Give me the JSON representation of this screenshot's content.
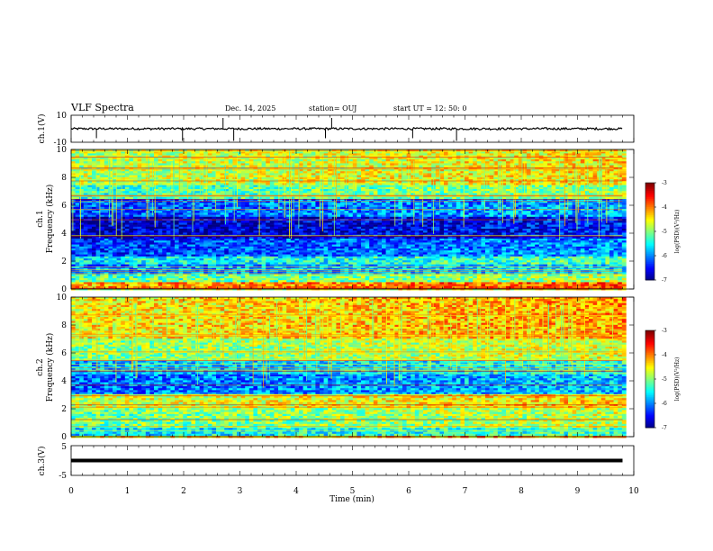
{
  "header": {
    "title": "VLF Spectra",
    "date": "Dec. 14, 2025",
    "station": "station= OUJ",
    "start": "start  UT =   12: 50: 0"
  },
  "chart_data": [
    {
      "id": "ch1-voltage",
      "type": "line",
      "ylabel": "ch.1(V)",
      "ylim": [
        -10,
        10
      ],
      "y_ticks": [
        "10",
        "-10"
      ],
      "baseline": 0,
      "spikes_x": [
        0.45,
        1.98,
        2.7,
        2.89,
        4.52,
        4.63,
        6.07,
        6.85
      ]
    },
    {
      "id": "ch1-spectrogram",
      "type": "heatmap",
      "ylabel": "ch.1\nFrequency (kHz)",
      "ylim": [
        0,
        10
      ],
      "y_ticks": [
        "0",
        "2",
        "4",
        "6",
        "8",
        "10"
      ],
      "xlim": [
        0,
        10
      ],
      "data_end_min": 9.8,
      "colorbar": {
        "label": "log(PSD)(V²/Hz)",
        "ticks": [
          "-3",
          "-4",
          "-5",
          "-6",
          "-7"
        ],
        "range": [
          -7,
          -3
        ]
      },
      "bands": [
        {
          "from": 0.0,
          "to": 0.5,
          "level": -4.2
        },
        {
          "from": 0.5,
          "to": 1.0,
          "level": -5.2
        },
        {
          "from": 1.0,
          "to": 1.7,
          "level": -6.0
        },
        {
          "from": 1.7,
          "to": 2.3,
          "level": -5.6
        },
        {
          "from": 2.3,
          "to": 3.6,
          "level": -6.3
        },
        {
          "from": 3.6,
          "to": 5.2,
          "level": -6.8
        },
        {
          "from": 5.2,
          "to": 6.5,
          "level": -6.2
        },
        {
          "from": 6.5,
          "to": 7.5,
          "level": -5.3
        },
        {
          "from": 7.5,
          "to": 10.0,
          "level": -4.8
        }
      ]
    },
    {
      "id": "ch2-spectrogram",
      "type": "heatmap",
      "ylabel": "ch.2\nFrequency (kHz)",
      "ylim": [
        0,
        10
      ],
      "y_ticks": [
        "0",
        "2",
        "4",
        "6",
        "8",
        "10"
      ],
      "xlim": [
        0,
        10
      ],
      "data_end_min": 9.8,
      "colorbar": {
        "label": "log(PSD)(V²/Hz)",
        "ticks": [
          "-3",
          "-4",
          "-5",
          "-6",
          "-7"
        ],
        "range": [
          -7,
          -3
        ]
      },
      "bands": [
        {
          "from": 0.0,
          "to": 0.6,
          "level": -5.6
        },
        {
          "from": 0.6,
          "to": 2.0,
          "level": -5.1
        },
        {
          "from": 2.0,
          "to": 3.0,
          "level": -4.7
        },
        {
          "from": 3.0,
          "to": 4.5,
          "level": -6.1
        },
        {
          "from": 4.5,
          "to": 5.5,
          "level": -5.8
        },
        {
          "from": 5.5,
          "to": 7.0,
          "level": -5.0
        },
        {
          "from": 7.0,
          "to": 10.0,
          "level": -4.5
        }
      ]
    },
    {
      "id": "ch3-voltage",
      "type": "line",
      "ylabel": "ch.3(V)",
      "ylim": [
        -5,
        5
      ],
      "y_ticks": [
        "5",
        "-5"
      ],
      "baseline": 0
    }
  ],
  "xaxis": {
    "label": "Time (min)",
    "ticks": [
      "0",
      "1",
      "2",
      "3",
      "4",
      "5",
      "6",
      "7",
      "8",
      "9",
      "10"
    ],
    "xlim": [
      0,
      10
    ]
  }
}
